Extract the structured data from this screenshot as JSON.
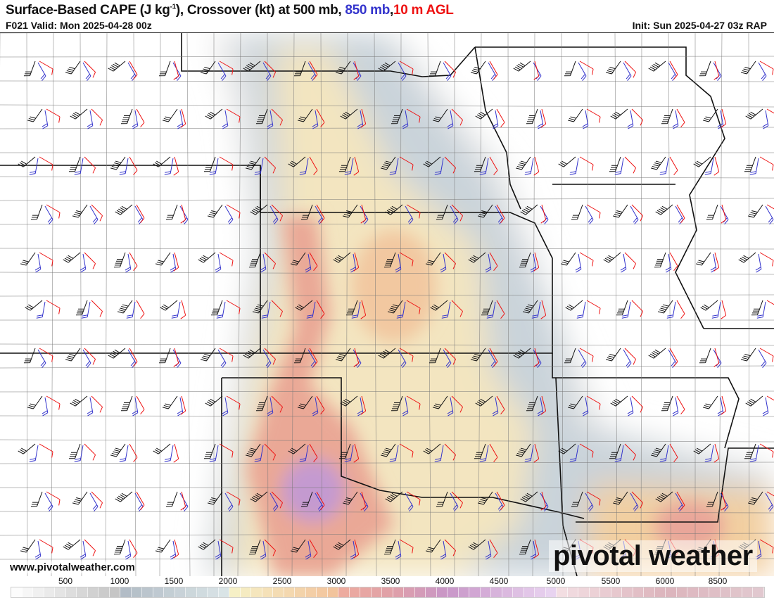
{
  "header": {
    "title_main": "Surface-Based CAPE (J kg",
    "title_sup": "-1",
    "title_rest": "), Crossover (kt) at 500 mb, ",
    "title_850": "850 mb",
    "title_sep": ",",
    "title_10m": "10 m AGL",
    "valid": "F021 Valid: Mon 2025-04-28 00z",
    "init": "Init: Sun 2025-04-27 03z RAP",
    "colors": {
      "850mb": "#3333cc",
      "10m": "#ee1111",
      "500mb": "#111111"
    }
  },
  "footer": {
    "url": "www.pivotalweather.com",
    "logo": "pivotal weather"
  },
  "colorbar": {
    "units": "J/kg",
    "ticks": [
      "500",
      "1000",
      "1500",
      "2000",
      "2500",
      "3000",
      "3500",
      "4000",
      "4500",
      "5000",
      "5500",
      "6000",
      "8500"
    ],
    "stops": [
      [
        "0",
        "#ffffff"
      ],
      [
        "1000",
        "#c2c2c2"
      ],
      [
        "1001",
        "#b0bac4"
      ],
      [
        "2000",
        "#dbe6e8"
      ],
      [
        "2001",
        "#f6f2c8"
      ],
      [
        "3000",
        "#f2c29a"
      ],
      [
        "3001",
        "#eeac9e"
      ],
      [
        "3500",
        "#e0a0a8"
      ],
      [
        "4000",
        "#c896c8"
      ],
      [
        "5000",
        "#ead6f2"
      ],
      [
        "5001",
        "#f4e0e4"
      ],
      [
        "6000",
        "#dcb4bc"
      ],
      [
        "7000",
        "#e2ccd2"
      ]
    ]
  }
}
